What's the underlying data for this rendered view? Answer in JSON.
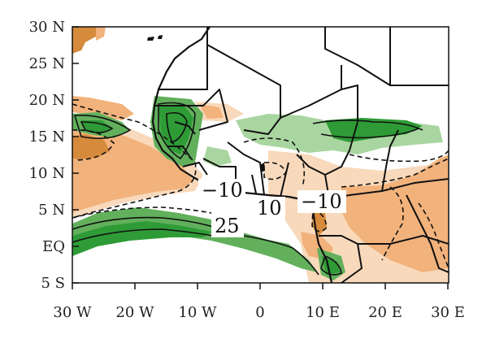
{
  "map": {
    "colors": {
      "green_dark": "#2e9b36",
      "green_mid": "#62b05c",
      "green_light": "#a9d6a0",
      "orange_dark": "#d68a3c",
      "orange_mid": "#f2b27b",
      "orange_light": "#f8d9bb",
      "line": "#111111"
    },
    "y_ticks": [
      {
        "label": "30 N"
      },
      {
        "label": "25 N"
      },
      {
        "label": "20 N"
      },
      {
        "label": "15 N"
      },
      {
        "label": "10 N"
      },
      {
        "label": "5 N"
      },
      {
        "label": "EQ"
      },
      {
        "label": "5 S"
      }
    ],
    "x_ticks": [
      {
        "label": "30 W"
      },
      {
        "label": "20 W"
      },
      {
        "label": "10 W"
      },
      {
        "label": "0"
      },
      {
        "label": "10 E"
      },
      {
        "label": "20 E"
      },
      {
        "label": "30 E"
      }
    ],
    "contour_labels": [
      {
        "text": "−10"
      },
      {
        "text": "10"
      },
      {
        "text": "−10"
      },
      {
        "text": "25"
      }
    ]
  }
}
